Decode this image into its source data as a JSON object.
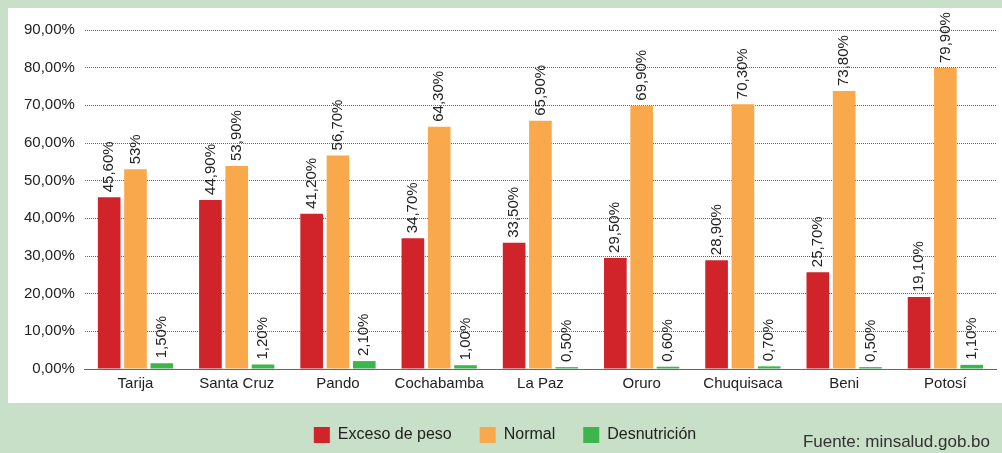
{
  "chart_data": {
    "type": "bar",
    "categories": [
      "Tarija",
      "Santa Cruz",
      "Pando",
      "Cochabamba",
      "La Paz",
      "Oruro",
      "Chuquisaca",
      "Beni",
      "Potosí"
    ],
    "series": [
      {
        "name": "Exceso de peso",
        "color": "#d0232a",
        "values": [
          45.6,
          44.9,
          41.2,
          34.7,
          33.5,
          29.5,
          28.9,
          25.7,
          19.1
        ],
        "value_labels": [
          "45,60%",
          "44,90%",
          "41,20%",
          "34,70%",
          "33,50%",
          "29,50%",
          "28,90%",
          "25,70%",
          "19,10%"
        ]
      },
      {
        "name": "Normal",
        "color": "#f9a94b",
        "values": [
          53,
          53.9,
          56.7,
          64.3,
          65.9,
          69.9,
          70.3,
          73.8,
          79.9
        ],
        "value_labels": [
          "53%",
          "53,90%",
          "56,70%",
          "64,30%",
          "65,90%",
          "69,90%",
          "70,30%",
          "73,80%",
          "79,90%"
        ]
      },
      {
        "name": "Desnutrición",
        "color": "#3cb54a",
        "values": [
          1.5,
          1.2,
          2.1,
          1.0,
          0.5,
          0.6,
          0.7,
          0.5,
          1.1
        ],
        "value_labels": [
          "1,50%",
          "1,20%",
          "2,10%",
          "1,00%",
          "0,50%",
          "0,60%",
          "0,70%",
          "0,50%",
          "1,10%"
        ]
      }
    ],
    "ylim": [
      0,
      90
    ],
    "yticks": [
      {
        "value": 0,
        "label": "0,00%"
      },
      {
        "value": 10,
        "label": "10,00%"
      },
      {
        "value": 20,
        "label": "20,00%"
      },
      {
        "value": 30,
        "label": "30,00%"
      },
      {
        "value": 40,
        "label": "40,00%"
      },
      {
        "value": 50,
        "label": "50,00%"
      },
      {
        "value": 60,
        "label": "60,00%"
      },
      {
        "value": 70,
        "label": "70,00%"
      },
      {
        "value": 80,
        "label": "80,00%"
      },
      {
        "value": 90,
        "label": "90,00%"
      }
    ],
    "grid": "y",
    "legend": "bottom",
    "annotations": [
      "Fuente: minsalud.gob.bo"
    ]
  }
}
